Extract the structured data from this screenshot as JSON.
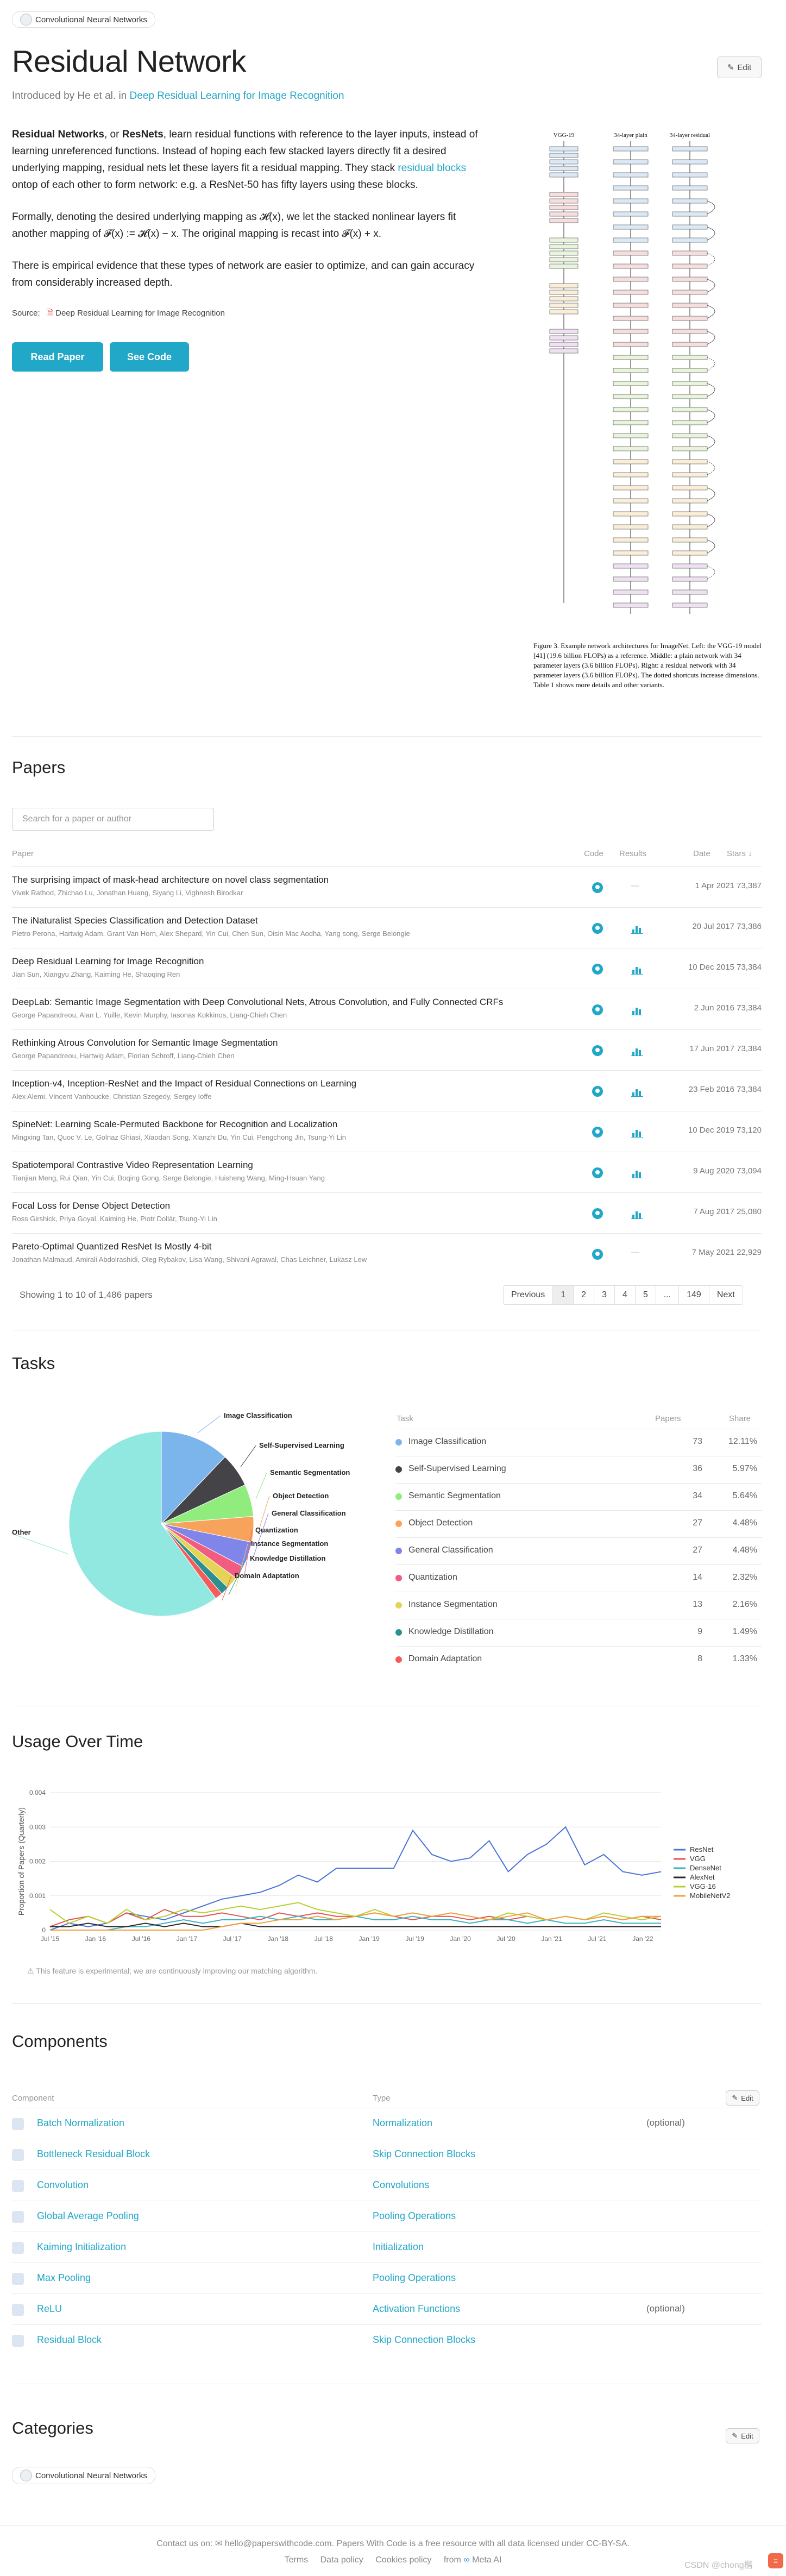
{
  "top_chip": {
    "label": "Convolutional Neural Networks"
  },
  "title": "Residual Network",
  "intro": {
    "prefix": "Introduced by He et al. in",
    "link": "Deep Residual Learning for Image Recognition"
  },
  "edit_label": "Edit",
  "description": {
    "p1_bold1": "Residual Networks",
    "p1_t1": ", or ",
    "p1_bold2": "ResNets",
    "p1_t2": ", learn residual functions with reference to the layer inputs, instead of learning unreferenced functions. Instead of hoping each few stacked layers directly fit a desired underlying mapping, residual nets let these layers fit a residual mapping. They stack ",
    "p1_link": "residual blocks",
    "p1_t3": " ontop of each other to form network: e.g. a ResNet-50 has fifty layers using these blocks.",
    "p2": "Formally, denoting the desired underlying mapping as 𝓗(x), we let the stacked nonlinear layers fit another mapping of 𝓕(x) := 𝓗(x) − x. The original mapping is recast into 𝓕(x) + x.",
    "p3": "There is empirical evidence that these types of network are easier to optimize, and can gain accuracy from considerably increased depth."
  },
  "source": {
    "label": "Source:",
    "link": "Deep Residual Learning for Image Recognition"
  },
  "buttons": {
    "read_paper": "Read Paper",
    "see_code": "See Code"
  },
  "figure": {
    "col_titles": [
      "VGG-19",
      "34-layer plain",
      "34-layer residual"
    ],
    "caption": "Figure 3. Example network architectures for ImageNet. Left: the VGG-19 model [41] (19.6 billion FLOPs) as a reference. Middle: a plain network with 34 parameter layers (3.6 billion FLOPs). Right: a residual network with 34 parameter layers (3.6 billion FLOPs). The dotted shortcuts increase dimensions. Table 1 shows more details and other variants."
  },
  "papers": {
    "heading": "Papers",
    "search_placeholder": "Search for a paper or author",
    "columns": {
      "paper": "Paper",
      "code": "Code",
      "results": "Results",
      "date": "Date",
      "stars": "Stars"
    },
    "items": [
      {
        "title": "The surprising impact of mask-head architecture on novel class segmentation",
        "authors": "Vivek Rathod, Zhichao Lu, Jonathan Huang, Siyang Li, Vighnesh Birodkar",
        "date": "1 Apr 2021",
        "stars": "73,387",
        "results": "—"
      },
      {
        "title": "The iNaturalist Species Classification and Detection Dataset",
        "authors": "Pietro Perona, Hartwig Adam, Grant Van Horn, Alex Shepard, Yin Cui, Chen Sun, Oisin Mac Aodha, Yang song, Serge Belongie",
        "date": "20 Jul 2017",
        "stars": "73,386",
        "results": "chart"
      },
      {
        "title": "Deep Residual Learning for Image Recognition",
        "authors": "Jian Sun, Xiangyu Zhang, Kaiming He, Shaoqing Ren",
        "date": "10 Dec 2015",
        "stars": "73,384",
        "results": "chart"
      },
      {
        "title": "DeepLab: Semantic Image Segmentation with Deep Convolutional Nets, Atrous Convolution, and Fully Connected CRFs",
        "authors": "George Papandreou, Alan L. Yuille, Kevin Murphy, Iasonas Kokkinos, Liang-Chieh Chen",
        "date": "2 Jun 2016",
        "stars": "73,384",
        "results": "chart"
      },
      {
        "title": "Rethinking Atrous Convolution for Semantic Image Segmentation",
        "authors": "George Papandreou, Hartwig Adam, Florian Schroff, Liang-Chieh Chen",
        "date": "17 Jun 2017",
        "stars": "73,384",
        "results": "chart"
      },
      {
        "title": "Inception-v4, Inception-ResNet and the Impact of Residual Connections on Learning",
        "authors": "Alex Alemi, Vincent Vanhoucke, Christian Szegedy, Sergey Ioffe",
        "date": "23 Feb 2016",
        "stars": "73,384",
        "results": "chart"
      },
      {
        "title": "SpineNet: Learning Scale-Permuted Backbone for Recognition and Localization",
        "authors": "Mingxing Tan, Quoc V. Le, Golnaz Ghiasi, Xiaodan Song, Xianzhi Du, Yin Cui, Pengchong Jin, Tsung-Yi Lin",
        "date": "10 Dec 2019",
        "stars": "73,120",
        "results": "chart"
      },
      {
        "title": "Spatiotemporal Contrastive Video Representation Learning",
        "authors": "Tianjian Meng, Rui Qian, Yin Cui, Boqing Gong, Serge Belongie, Huisheng Wang, Ming-Hsuan Yang",
        "date": "9 Aug 2020",
        "stars": "73,094",
        "results": "chart"
      },
      {
        "title": "Focal Loss for Dense Object Detection",
        "authors": "Ross Girshick, Priya Goyal, Kaiming He, Piotr Dollár, Tsung-Yi Lin",
        "date": "7 Aug 2017",
        "stars": "25,080",
        "results": "chart"
      },
      {
        "title": "Pareto-Optimal Quantized ResNet Is Mostly 4-bit",
        "authors": "Jonathan Malmaud, Amirali Abdolrashidi, Oleg Rybakov, Lisa Wang, Shivani Agrawal, Chas Leichner, Lukasz Lew",
        "date": "7 May 2021",
        "stars": "22,929",
        "results": "—"
      }
    ],
    "summary": "Showing 1 to 10 of 1,486 papers",
    "pager": [
      "Previous",
      "1",
      "2",
      "3",
      "4",
      "5",
      "...",
      "149",
      "Next"
    ]
  },
  "tasks": {
    "heading": "Tasks",
    "columns": {
      "task": "Task",
      "papers": "Papers",
      "share": "Share"
    },
    "other_label": "Other",
    "items": [
      {
        "name": "Image Classification",
        "papers": "73",
        "share": "12.11%",
        "color": "#7cb5ec"
      },
      {
        "name": "Self-Supervised Learning",
        "papers": "36",
        "share": "5.97%",
        "color": "#434348"
      },
      {
        "name": "Semantic Segmentation",
        "papers": "34",
        "share": "5.64%",
        "color": "#90ed7d"
      },
      {
        "name": "Object Detection",
        "papers": "27",
        "share": "4.48%",
        "color": "#f7a35c"
      },
      {
        "name": "General Classification",
        "papers": "27",
        "share": "4.48%",
        "color": "#8085e9"
      },
      {
        "name": "Quantization",
        "papers": "14",
        "share": "2.32%",
        "color": "#f15c80"
      },
      {
        "name": "Instance Segmentation",
        "papers": "13",
        "share": "2.16%",
        "color": "#e4d354"
      },
      {
        "name": "Knowledge Distillation",
        "papers": "9",
        "share": "1.49%",
        "color": "#2b908f"
      },
      {
        "name": "Domain Adaptation",
        "papers": "8",
        "share": "1.33%",
        "color": "#f45b5b"
      }
    ],
    "other_color": "#91e8e1"
  },
  "chart_data": [
    {
      "type": "pie",
      "title": "Tasks",
      "labels": [
        "Image Classification",
        "Self-Supervised Learning",
        "Semantic Segmentation",
        "Object Detection",
        "General Classification",
        "Quantization",
        "Instance Segmentation",
        "Knowledge Distillation",
        "Domain Adaptation",
        "Other"
      ],
      "values": [
        12.11,
        5.97,
        5.64,
        4.48,
        4.48,
        2.32,
        2.16,
        1.49,
        1.33,
        60.02
      ]
    },
    {
      "type": "line",
      "title": "Usage Over Time",
      "ylabel": "Proportion of Papers (Quarterly)",
      "ylim": [
        0,
        0.004
      ],
      "yticks": [
        "0",
        "0.001",
        "0.002",
        "0.003",
        "0.004"
      ],
      "xticks": [
        "Jul '15",
        "Jan '16",
        "Jul '16",
        "Jan '17",
        "Jul '17",
        "Jan '18",
        "Jul '18",
        "Jan '19",
        "Jul '19",
        "Jan '20",
        "Jul '20",
        "Jan '21",
        "Jul '21",
        "Jan '22"
      ],
      "series": [
        {
          "name": "ResNet",
          "color": "#4a74d9",
          "values": [
            0.0,
            0.0002,
            0.0001,
            0.0002,
            0.0005,
            0.0004,
            0.0003,
            0.0005,
            0.0007,
            0.0009,
            0.001,
            0.0011,
            0.0013,
            0.0016,
            0.0014,
            0.0018,
            0.0018,
            0.0018,
            0.0018,
            0.0029,
            0.0022,
            0.002,
            0.0021,
            0.0026,
            0.0017,
            0.0022,
            0.0025,
            0.003,
            0.0019,
            0.0022,
            0.0017,
            0.0016,
            0.0017
          ]
        },
        {
          "name": "VGG",
          "color": "#e05656",
          "values": [
            0.0001,
            0.0003,
            0.0004,
            0.0002,
            0.0005,
            0.0003,
            0.0006,
            0.0004,
            0.0004,
            0.0005,
            0.0004,
            0.0003,
            0.0005,
            0.0004,
            0.0005,
            0.0004,
            0.0004,
            0.0005,
            0.0004,
            0.0003,
            0.0004,
            0.0004,
            0.0003,
            0.0004,
            0.0003,
            0.0004,
            0.0003,
            0.0004,
            0.0003,
            0.0004,
            0.0003,
            0.0004,
            0.0003
          ]
        },
        {
          "name": "DenseNet",
          "color": "#3bb3c3",
          "values": [
            0.0,
            0.0,
            0.0,
            0.0,
            0.0001,
            0.0001,
            0.0002,
            0.0003,
            0.0002,
            0.0003,
            0.0003,
            0.0004,
            0.0003,
            0.0004,
            0.0003,
            0.0003,
            0.0004,
            0.0003,
            0.0003,
            0.0004,
            0.0003,
            0.0003,
            0.0002,
            0.0003,
            0.0003,
            0.0002,
            0.0003,
            0.0002,
            0.0002,
            0.0003,
            0.0002,
            0.0002,
            0.0002
          ]
        },
        {
          "name": "AlexNet",
          "color": "#2a2a2a",
          "values": [
            0.0001,
            0.0001,
            0.0002,
            0.0001,
            0.0001,
            0.0002,
            0.0001,
            0.0002,
            0.0001,
            0.0001,
            0.0002,
            0.0001,
            0.0001,
            0.0001,
            0.0001,
            0.0001,
            0.0001,
            0.0001,
            0.0001,
            0.0001,
            0.0001,
            0.0001,
            0.0001,
            0.0001,
            0.0001,
            0.0001,
            0.0001,
            0.0001,
            0.0001,
            0.0001,
            0.0001,
            0.0001,
            0.0001
          ]
        },
        {
          "name": "VGG-16",
          "color": "#b7cf2f",
          "values": [
            0.0006,
            0.0002,
            0.0004,
            0.0002,
            0.0006,
            0.0003,
            0.0004,
            0.0006,
            0.0005,
            0.0006,
            0.0007,
            0.0006,
            0.0007,
            0.0008,
            0.0006,
            0.0005,
            0.0004,
            0.0006,
            0.0004,
            0.0005,
            0.0004,
            0.0005,
            0.0004,
            0.0003,
            0.0005,
            0.0004,
            0.0003,
            0.0004,
            0.0003,
            0.0005,
            0.0004,
            0.0003,
            0.0004
          ]
        },
        {
          "name": "MobileNetV2",
          "color": "#f0a040",
          "values": [
            0.0,
            0.0,
            0.0,
            0.0,
            0.0,
            0.0,
            0.0,
            0.0,
            0.0,
            0.0001,
            0.0002,
            0.0002,
            0.0003,
            0.0003,
            0.0004,
            0.0003,
            0.0004,
            0.0005,
            0.0004,
            0.0005,
            0.0004,
            0.0005,
            0.0004,
            0.0003,
            0.0004,
            0.0005,
            0.0003,
            0.0004,
            0.0003,
            0.0004,
            0.0003,
            0.0004,
            0.0004
          ]
        }
      ]
    }
  ],
  "usage": {
    "heading": "Usage Over Time",
    "note": "This feature is experimental; we are continuously improving our matching algorithm."
  },
  "components": {
    "heading": "Components",
    "columns": {
      "component": "Component",
      "type": "Type"
    },
    "items": [
      {
        "name": "Batch Normalization",
        "type": "Normalization",
        "optional": "(optional)"
      },
      {
        "name": "Bottleneck Residual Block",
        "type": "Skip Connection Blocks",
        "optional": ""
      },
      {
        "name": "Convolution",
        "type": "Convolutions",
        "optional": ""
      },
      {
        "name": "Global Average Pooling",
        "type": "Pooling Operations",
        "optional": ""
      },
      {
        "name": "Kaiming Initialization",
        "type": "Initialization",
        "optional": ""
      },
      {
        "name": "Max Pooling",
        "type": "Pooling Operations",
        "optional": ""
      },
      {
        "name": "ReLU",
        "type": "Activation Functions",
        "optional": "(optional)"
      },
      {
        "name": "Residual Block",
        "type": "Skip Connection Blocks",
        "optional": ""
      }
    ]
  },
  "categories": {
    "heading": "Categories",
    "chip": "Convolutional Neural Networks"
  },
  "footer": {
    "line1_prefix": "Contact us on:",
    "email": "hello@paperswithcode.com",
    "line1_suffix": ". Papers With Code is a free resource with all data licensed under CC-BY-SA.",
    "links": [
      "Terms",
      "Data policy",
      "Cookies policy"
    ],
    "from": "from",
    "meta": "Meta AI",
    "watermark": "CSDN @chong楷"
  }
}
